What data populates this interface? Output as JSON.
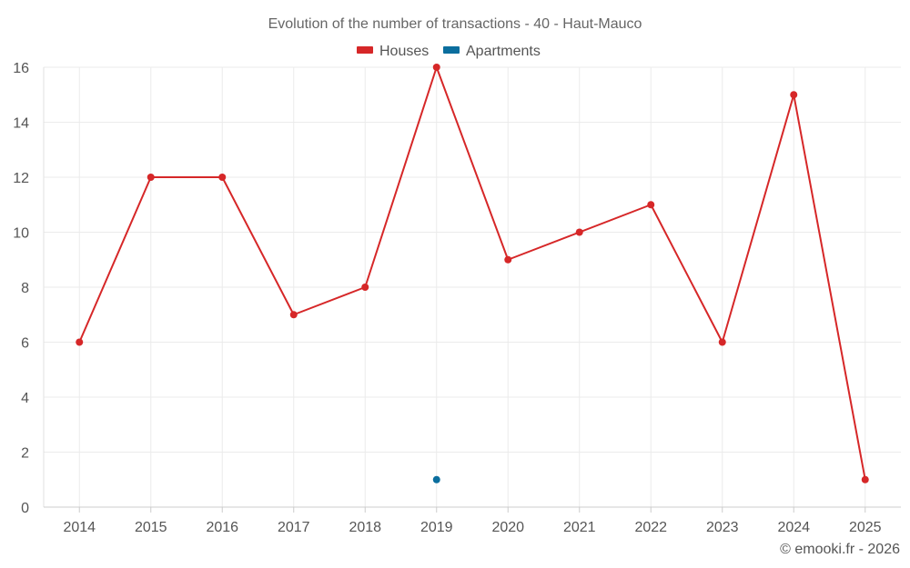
{
  "chart_data": {
    "type": "line",
    "title": "Evolution of the number of transactions - 40 - Haut-Mauco",
    "categories": [
      "2014",
      "2015",
      "2016",
      "2017",
      "2018",
      "2019",
      "2020",
      "2021",
      "2022",
      "2023",
      "2024",
      "2025"
    ],
    "series": [
      {
        "name": "Houses",
        "color": "#d62728",
        "values": [
          6,
          12,
          12,
          7,
          8,
          16,
          9,
          10,
          11,
          6,
          15,
          1
        ]
      },
      {
        "name": "Apartments",
        "color": "#0b6e9e",
        "values": [
          null,
          null,
          null,
          null,
          null,
          1,
          null,
          null,
          null,
          null,
          null,
          null
        ]
      }
    ],
    "y_ticks": [
      0,
      2,
      4,
      6,
      8,
      10,
      12,
      14,
      16
    ],
    "ylim": [
      0,
      16
    ],
    "xlabel": "",
    "ylabel": "",
    "legend_position": "top-center",
    "grid": true
  },
  "credit": "© emooki.fr - 2026"
}
